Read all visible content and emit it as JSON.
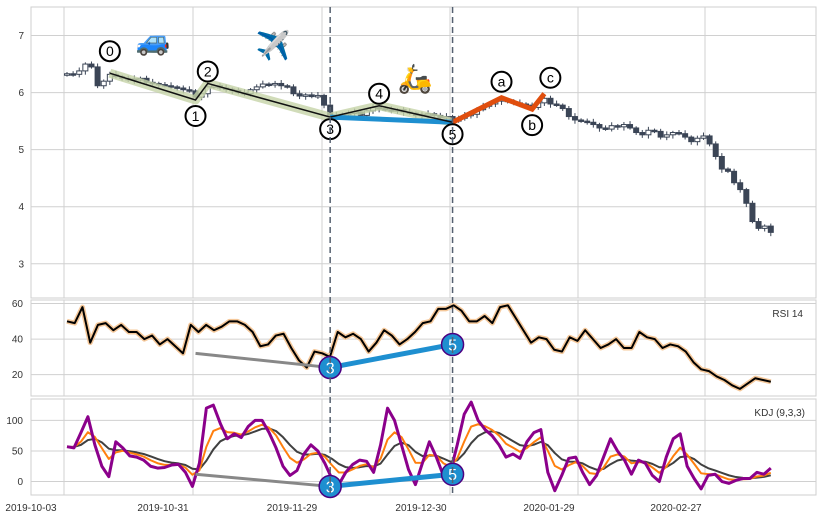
{
  "chart_data": {
    "type": "candlestick+line",
    "x_tick_labels": [
      "2019-10-03",
      "2019-10-31",
      "2019-11-29",
      "2019-12-30",
      "2020-01-29",
      "2020-02-27"
    ],
    "price_panel": {
      "yticks": [
        3,
        4,
        5,
        6,
        7
      ],
      "ylim": [
        2.4,
        7.5
      ],
      "closes": [
        6.33,
        6.32,
        6.38,
        6.5,
        6.45,
        6.12,
        6.2,
        6.32,
        6.28,
        6.25,
        6.24,
        6.22,
        6.25,
        6.18,
        6.16,
        6.14,
        6.12,
        6.1,
        6.08,
        6.05,
        6.03,
        5.92,
        5.98,
        6.1,
        6.12,
        6.08,
        6.06,
        6.04,
        6.0,
        5.98,
        6.05,
        6.1,
        6.15,
        6.14,
        6.16,
        6.12,
        6.1,
        5.98,
        5.94,
        5.96,
        5.93,
        5.95,
        5.78,
        5.6,
        5.58,
        5.62,
        5.64,
        5.66,
        5.6,
        5.68,
        5.74,
        5.72,
        5.7,
        5.68,
        5.7,
        5.66,
        5.64,
        5.6,
        5.62,
        5.63,
        5.6,
        5.56,
        5.58,
        5.5,
        5.55,
        5.6,
        5.62,
        5.7,
        5.76,
        5.8,
        5.85,
        5.88,
        5.84,
        5.82,
        5.8,
        5.78,
        5.74,
        5.82,
        5.9,
        5.8,
        5.78,
        5.72,
        5.58,
        5.52,
        5.5,
        5.48,
        5.44,
        5.38,
        5.36,
        5.42,
        5.4,
        5.44,
        5.38,
        5.3,
        5.26,
        5.34,
        5.32,
        5.22,
        5.26,
        5.3,
        5.28,
        5.22,
        5.14,
        5.2,
        5.24,
        5.1,
        4.88,
        4.66,
        4.62,
        4.42,
        4.3,
        4.06,
        3.74,
        3.62,
        3.66,
        3.55
      ],
      "wave_points": [
        {
          "label": "0",
          "bar": 7,
          "price": 6.34
        },
        {
          "label": "1",
          "bar": 21,
          "price": 5.87
        },
        {
          "label": "2",
          "bar": 23,
          "price": 6.16
        },
        {
          "label": "3",
          "bar": 43,
          "price": 5.57
        },
        {
          "label": "4",
          "bar": 51,
          "price": 5.77
        },
        {
          "label": "5",
          "bar": 63,
          "price": 5.48
        },
        {
          "label": "a",
          "bar": 71,
          "price": 5.91
        },
        {
          "label": "b",
          "bar": 76,
          "price": 5.71
        },
        {
          "label": "c",
          "bar": 78,
          "price": 5.98
        }
      ],
      "emoji_markers": [
        {
          "icon": "car",
          "glyph": "🚙"
        },
        {
          "icon": "airplane",
          "glyph": "✈️"
        },
        {
          "icon": "scooter",
          "glyph": "🛵"
        }
      ],
      "vlines_bars": [
        43,
        63
      ]
    },
    "rsi_panel": {
      "title": "RSI 14",
      "yticks": [
        20,
        40,
        60
      ],
      "ylim": [
        8,
        62
      ],
      "values": [
        50,
        49,
        58,
        38,
        48,
        49,
        45,
        48,
        44,
        44,
        40,
        42,
        37,
        40,
        36,
        32,
        48,
        44,
        48,
        45,
        47,
        50,
        50,
        48,
        44,
        36,
        37,
        42,
        43,
        35,
        28,
        24,
        33,
        32,
        30,
        44,
        41,
        43,
        40,
        33,
        38,
        45,
        42,
        37,
        40,
        44,
        49,
        50,
        57,
        57,
        59,
        56,
        50,
        50,
        53,
        49,
        58,
        59,
        52,
        45,
        38,
        41,
        40,
        34,
        33,
        41,
        39,
        45,
        40,
        35,
        37,
        40,
        35,
        35,
        44,
        41,
        40,
        35,
        37,
        36,
        33,
        27,
        23,
        22,
        19,
        17,
        14,
        12,
        15,
        18,
        17,
        16
      ],
      "divergence": {
        "from": {
          "bar": 21,
          "value": 32
        },
        "mid": {
          "label": "3",
          "bar": 43,
          "value": 24
        },
        "to": {
          "label": "5",
          "bar": 63,
          "value": 37
        }
      }
    },
    "kdj_panel": {
      "title": "KDJ (9,3,3)",
      "yticks": [
        0,
        50,
        100
      ],
      "ylim": [
        -22,
        135
      ],
      "J": [
        57,
        55,
        80,
        106,
        60,
        25,
        8,
        65,
        55,
        42,
        40,
        35,
        25,
        22,
        23,
        27,
        28,
        15,
        -8,
        30,
        120,
        125,
        95,
        70,
        78,
        72,
        90,
        100,
        100,
        80,
        55,
        25,
        10,
        18,
        45,
        60,
        50,
        30,
        5,
        -5,
        15,
        28,
        35,
        33,
        15,
        60,
        120,
        100,
        60,
        20,
        -5,
        30,
        65,
        40,
        10,
        15,
        60,
        110,
        130,
        100,
        85,
        75,
        60,
        40,
        45,
        38,
        65,
        80,
        85,
        15,
        -15,
        10,
        38,
        40,
        15,
        -5,
        10,
        40,
        70,
        50,
        35,
        12,
        35,
        30,
        10,
        0,
        40,
        70,
        78,
        25,
        5,
        -12,
        10,
        12,
        0,
        -3,
        2,
        5,
        5,
        15,
        12,
        22
      ],
      "divergence": {
        "from": {
          "bar": 21,
          "value": 12
        },
        "mid": {
          "label": "3",
          "bar": 43,
          "value": -8
        },
        "to": {
          "label": "5",
          "bar": 63,
          "value": 12
        }
      }
    },
    "colors": {
      "candle": "#3b4556",
      "wave_glow": "#c5d3a8",
      "impulse": "#111111",
      "blue": "#1e8fd0",
      "orange": "#e04e0e",
      "gray": "#888888",
      "K": "#ff7f0e",
      "D": "#404040",
      "J": "#8b008b",
      "rsi": "#000000"
    }
  }
}
